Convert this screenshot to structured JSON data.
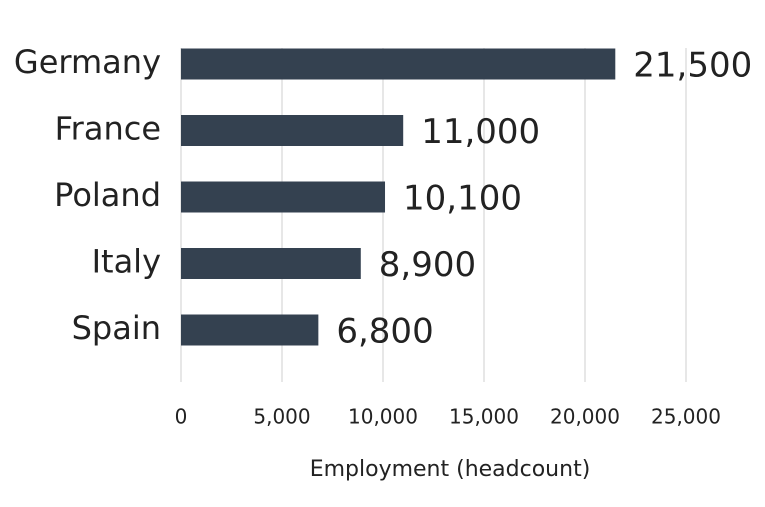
{
  "chart_data": {
    "type": "bar",
    "orientation": "horizontal",
    "categories": [
      "Germany",
      "France",
      "Poland",
      "Italy",
      "Spain"
    ],
    "values": [
      21500,
      11000,
      10100,
      8900,
      6800
    ],
    "value_labels": [
      "21,500",
      "11,000",
      "10,100",
      "8,900",
      "6,800"
    ],
    "color": "#344150",
    "xlabel": "Employment (headcount)",
    "xlim": [
      0,
      25000
    ],
    "xticks": [
      0,
      {
        "value": 5000,
        "label": "5,000"
      },
      {
        "value": 10000,
        "label": "10,000"
      },
      {
        "value": 15000,
        "label": "15,000"
      },
      {
        "value": 20000,
        "label": "20,000"
      },
      {
        "value": 25000,
        "label": "25,000"
      }
    ],
    "grid": true
  }
}
